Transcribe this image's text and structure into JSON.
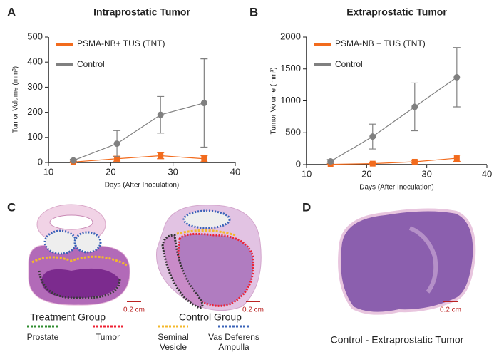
{
  "chart_data": [
    {
      "type": "line",
      "panel": "A",
      "title": "Intraprostatic Tumor",
      "xlabel": "Days (After Inoculation)",
      "ylabel": "Tumor Volume (mm³)",
      "x": [
        14,
        21,
        28,
        35
      ],
      "xlim": [
        10,
        40
      ],
      "xticks": [
        10,
        20,
        30,
        40
      ],
      "ylim": [
        0,
        500
      ],
      "yticks": [
        0,
        100,
        200,
        300,
        400,
        500
      ],
      "series": [
        {
          "name": "PSMA-NB+ TUS (TNT)",
          "color": "#f26b1d",
          "marker": "square",
          "values": [
            2,
            15,
            27,
            15
          ],
          "errors": [
            3,
            10,
            12,
            12
          ]
        },
        {
          "name": "Control",
          "color": "#808080",
          "marker": "circle",
          "values": [
            8,
            75,
            190,
            237
          ],
          "errors": [
            5,
            52,
            73,
            176
          ]
        }
      ]
    },
    {
      "type": "line",
      "panel": "B",
      "title": "Extraprostatic Tumor",
      "xlabel": "Days (After Inoculation)",
      "ylabel": "Tumor Volume (mm³)",
      "x": [
        14,
        21,
        28,
        35
      ],
      "xlim": [
        10,
        40
      ],
      "xticks": [
        10,
        20,
        30,
        40
      ],
      "ylim": [
        0,
        2000
      ],
      "yticks": [
        0,
        500,
        1000,
        1500,
        2000
      ],
      "series": [
        {
          "name": "PSMA-NB + TUS (TNT)",
          "color": "#f26b1d",
          "marker": "square",
          "values": [
            5,
            15,
            45,
            100
          ],
          "errors": [
            5,
            10,
            20,
            50
          ]
        },
        {
          "name": "Control",
          "color": "#808080",
          "marker": "circle",
          "values": [
            50,
            440,
            905,
            1370
          ],
          "errors": [
            30,
            195,
            375,
            465
          ]
        }
      ]
    }
  ],
  "panels": {
    "c": {
      "label": "C",
      "treatment": "Treatment Group",
      "control": "Control Group",
      "scale1": "0.2 cm",
      "scale2": "0.2 cm",
      "legend": {
        "prostate": "Prostate",
        "tumor": "Tumor",
        "seminal": [
          "Seminal",
          "Vesicle"
        ],
        "vas": [
          "Vas Deferens",
          "Ampulla"
        ]
      }
    },
    "d": {
      "label": "D",
      "scale": "0.2 cm",
      "caption": "Control - Extraprostatic Tumor"
    }
  }
}
